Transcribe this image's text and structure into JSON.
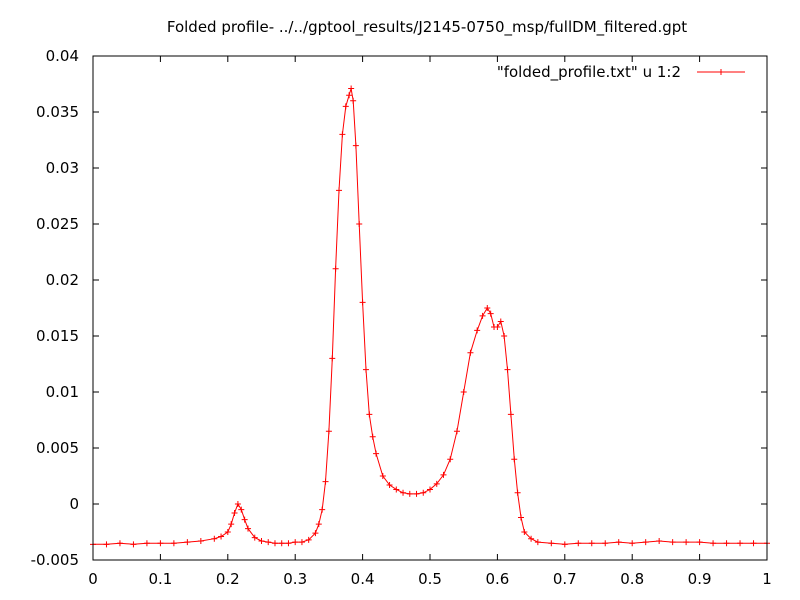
{
  "chart_data": {
    "type": "line",
    "title": "Folded profile- ../../gptool_results/J2145-0750_msp/fullDM_filtered.gpt",
    "xlabel": "",
    "ylabel": "",
    "xlim": [
      0,
      1
    ],
    "ylim": [
      -0.005,
      0.04
    ],
    "grid": false,
    "legend_position": "top-right",
    "x_ticks": [
      "0",
      "0.1",
      "0.2",
      "0.3",
      "0.4",
      "0.5",
      "0.6",
      "0.7",
      "0.8",
      "0.9",
      "1"
    ],
    "y_ticks": [
      "-0.005",
      "0",
      "0.005",
      "0.01",
      "0.015",
      "0.02",
      "0.025",
      "0.03",
      "0.035",
      "0.04"
    ],
    "series": [
      {
        "name": "\"folded_profile.txt\" u 1:2",
        "color": "#ff0000",
        "marker": "plus",
        "points": [
          [
            0.0,
            -0.0036
          ],
          [
            0.02,
            -0.0036
          ],
          [
            0.04,
            -0.0035
          ],
          [
            0.06,
            -0.0036
          ],
          [
            0.08,
            -0.0035
          ],
          [
            0.1,
            -0.0035
          ],
          [
            0.12,
            -0.0035
          ],
          [
            0.14,
            -0.0034
          ],
          [
            0.16,
            -0.0033
          ],
          [
            0.18,
            -0.0031
          ],
          [
            0.19,
            -0.0029
          ],
          [
            0.2,
            -0.0025
          ],
          [
            0.205,
            -0.0018
          ],
          [
            0.21,
            -0.0008
          ],
          [
            0.215,
            0.0
          ],
          [
            0.22,
            -0.0005
          ],
          [
            0.225,
            -0.0014
          ],
          [
            0.23,
            -0.0022
          ],
          [
            0.24,
            -0.003
          ],
          [
            0.25,
            -0.0033
          ],
          [
            0.26,
            -0.0034
          ],
          [
            0.27,
            -0.0035
          ],
          [
            0.28,
            -0.0035
          ],
          [
            0.29,
            -0.0035
          ],
          [
            0.3,
            -0.0034
          ],
          [
            0.31,
            -0.0034
          ],
          [
            0.32,
            -0.0032
          ],
          [
            0.33,
            -0.0026
          ],
          [
            0.335,
            -0.0018
          ],
          [
            0.34,
            -0.0005
          ],
          [
            0.345,
            0.002
          ],
          [
            0.35,
            0.0065
          ],
          [
            0.355,
            0.013
          ],
          [
            0.36,
            0.021
          ],
          [
            0.365,
            0.028
          ],
          [
            0.37,
            0.033
          ],
          [
            0.375,
            0.0355
          ],
          [
            0.38,
            0.0365
          ],
          [
            0.383,
            0.0371
          ],
          [
            0.386,
            0.036
          ],
          [
            0.39,
            0.032
          ],
          [
            0.395,
            0.025
          ],
          [
            0.4,
            0.018
          ],
          [
            0.405,
            0.012
          ],
          [
            0.41,
            0.008
          ],
          [
            0.415,
            0.006
          ],
          [
            0.42,
            0.0045
          ],
          [
            0.43,
            0.0025
          ],
          [
            0.44,
            0.0017
          ],
          [
            0.45,
            0.0013
          ],
          [
            0.46,
            0.001
          ],
          [
            0.47,
            0.0009
          ],
          [
            0.48,
            0.0009
          ],
          [
            0.49,
            0.001
          ],
          [
            0.5,
            0.0013
          ],
          [
            0.51,
            0.0018
          ],
          [
            0.52,
            0.0026
          ],
          [
            0.53,
            0.004
          ],
          [
            0.54,
            0.0065
          ],
          [
            0.55,
            0.01
          ],
          [
            0.56,
            0.0135
          ],
          [
            0.57,
            0.0155
          ],
          [
            0.578,
            0.0168
          ],
          [
            0.585,
            0.0175
          ],
          [
            0.59,
            0.017
          ],
          [
            0.595,
            0.0158
          ],
          [
            0.6,
            0.0158
          ],
          [
            0.605,
            0.0163
          ],
          [
            0.61,
            0.015
          ],
          [
            0.615,
            0.012
          ],
          [
            0.62,
            0.008
          ],
          [
            0.625,
            0.004
          ],
          [
            0.63,
            0.001
          ],
          [
            0.635,
            -0.0012
          ],
          [
            0.64,
            -0.0025
          ],
          [
            0.65,
            -0.0031
          ],
          [
            0.66,
            -0.0034
          ],
          [
            0.68,
            -0.0035
          ],
          [
            0.7,
            -0.0036
          ],
          [
            0.72,
            -0.0035
          ],
          [
            0.74,
            -0.0035
          ],
          [
            0.76,
            -0.0035
          ],
          [
            0.78,
            -0.0034
          ],
          [
            0.8,
            -0.0035
          ],
          [
            0.82,
            -0.0034
          ],
          [
            0.84,
            -0.0033
          ],
          [
            0.86,
            -0.0034
          ],
          [
            0.88,
            -0.0034
          ],
          [
            0.9,
            -0.0034
          ],
          [
            0.92,
            -0.0035
          ],
          [
            0.94,
            -0.0035
          ],
          [
            0.96,
            -0.0035
          ],
          [
            0.98,
            -0.0035
          ],
          [
            1.0,
            -0.0035
          ]
        ]
      }
    ]
  }
}
